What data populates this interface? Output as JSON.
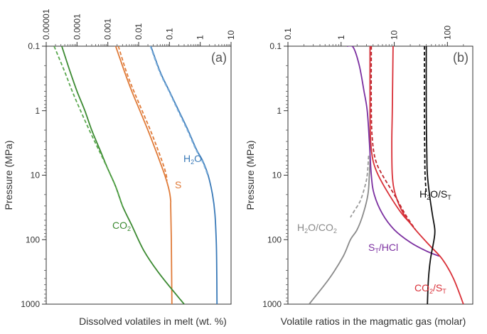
{
  "chart_data": [
    {
      "type": "line",
      "panel_label": "(a)",
      "xlabel": "Dissolved volatiles in melt (wt. %)",
      "ylabel": "Pressure (MPa)",
      "x_scale": "log",
      "y_scale": "log",
      "y_inverted": true,
      "x_axis_position": "top",
      "xlim": [
        1e-05,
        10
      ],
      "ylim": [
        0.1,
        1000
      ],
      "x_ticks": [
        1e-05,
        0.0001,
        0.001,
        0.01,
        0.1,
        1,
        10
      ],
      "x_tick_labels": [
        "0.00001",
        "0.0001",
        "0.001",
        "0.01",
        "0.1",
        "1",
        "10"
      ],
      "y_ticks": [
        0.1,
        1,
        10,
        100,
        1000
      ],
      "y_tick_labels": [
        "0.1",
        "1",
        "10",
        "100",
        "1000"
      ],
      "series": [
        {
          "name": "H2O",
          "label": "H",
          "label_sub": "2",
          "label_suffix": "O",
          "color": "#3a7ab8",
          "dash": "solid",
          "points": [
            [
              0.025,
              0.1
            ],
            [
              0.05,
              0.25
            ],
            [
              0.1,
              0.5
            ],
            [
              0.2,
              1
            ],
            [
              0.4,
              2
            ],
            [
              0.75,
              4
            ],
            [
              1.2,
              6
            ],
            [
              1.8,
              10
            ],
            [
              2.5,
              20
            ],
            [
              3,
              40
            ],
            [
              3.3,
              100
            ],
            [
              3.4,
              200
            ],
            [
              3.5,
              1000
            ]
          ]
        },
        {
          "name": "H2O (dashed)",
          "color": "#7fb0dc",
          "dash": "dashed",
          "points": [
            [
              0.024,
              0.1
            ],
            [
              0.048,
              0.25
            ],
            [
              0.096,
              0.5
            ],
            [
              0.19,
              1
            ],
            [
              0.38,
              2
            ],
            [
              0.72,
              4
            ],
            [
              1.15,
              6
            ],
            [
              1.75,
              10
            ]
          ]
        },
        {
          "name": "S",
          "label": "S",
          "color": "#e07b39",
          "dash": "solid",
          "points": [
            [
              0.0018,
              0.1
            ],
            [
              0.0035,
              0.25
            ],
            [
              0.006,
              0.5
            ],
            [
              0.011,
              1
            ],
            [
              0.02,
              2
            ],
            [
              0.035,
              4
            ],
            [
              0.06,
              8
            ],
            [
              0.08,
              12
            ],
            [
              0.1,
              18
            ],
            [
              0.11,
              25
            ],
            [
              0.11,
              30
            ],
            [
              0.115,
              100
            ],
            [
              0.12,
              1000
            ]
          ]
        },
        {
          "name": "S (dashed)",
          "color": "#e07b39",
          "dash": "dashed",
          "points": [
            [
              0.0022,
              0.1
            ],
            [
              0.004,
              0.25
            ],
            [
              0.007,
              0.5
            ],
            [
              0.013,
              1
            ],
            [
              0.024,
              2
            ],
            [
              0.042,
              4
            ],
            [
              0.07,
              8
            ],
            [
              0.085,
              12
            ]
          ]
        },
        {
          "name": "CO2",
          "label": "CO",
          "label_sub": "2",
          "color": "#3c8a32",
          "dash": "solid",
          "points": [
            [
              3.2e-05,
              0.1
            ],
            [
              6e-05,
              0.25
            ],
            [
              0.0001,
              0.5
            ],
            [
              0.00018,
              1
            ],
            [
              0.0003,
              2
            ],
            [
              0.00055,
              4
            ],
            [
              0.001,
              8
            ],
            [
              0.0018,
              15
            ],
            [
              0.003,
              30
            ],
            [
              0.006,
              60
            ],
            [
              0.015,
              150
            ],
            [
              0.05,
              350
            ],
            [
              0.3,
              1000
            ]
          ]
        },
        {
          "name": "CO2 (dashed)",
          "color": "#5aa84e",
          "dash": "dashed",
          "points": [
            [
              1.8e-05,
              0.1
            ],
            [
              4e-05,
              0.25
            ],
            [
              7e-05,
              0.5
            ],
            [
              0.00013,
              1
            ],
            [
              0.00025,
              2
            ],
            [
              0.0005,
              4
            ],
            [
              0.001,
              8
            ],
            [
              0.0018,
              15
            ],
            [
              0.003,
              30
            ]
          ]
        }
      ]
    },
    {
      "type": "line",
      "panel_label": "(b)",
      "xlabel": "Volatile ratios in the magmatic gas (molar)",
      "ylabel": "Pressure (MPa)",
      "x_scale": "log",
      "y_scale": "log",
      "y_inverted": true,
      "x_axis_position": "top",
      "xlim": [
        0.1,
        300
      ],
      "ylim": [
        0.1,
        1000
      ],
      "x_ticks": [
        0.1,
        1,
        10,
        100
      ],
      "x_tick_labels": [
        "0.1",
        "1",
        "10",
        "100"
      ],
      "y_ticks": [
        0.1,
        1,
        10,
        100,
        1000
      ],
      "y_tick_labels": [
        "0.1",
        "1",
        "10",
        "100",
        "1000"
      ],
      "series": [
        {
          "name": "H2O/CO2",
          "label": "H",
          "label_sub": "2",
          "label_suffix": "O/CO",
          "label_sub2": "2",
          "color": "#8a8a8a",
          "dash": "solid",
          "points": [
            [
              3.5,
              0.1
            ],
            [
              3.5,
              1
            ],
            [
              3.5,
              5
            ],
            [
              3.4,
              10
            ],
            [
              3.2,
              20
            ],
            [
              2.6,
              40
            ],
            [
              2,
              70
            ],
            [
              1.5,
              100
            ],
            [
              1.1,
              180
            ],
            [
              0.6,
              400
            ],
            [
              0.25,
              1000
            ]
          ]
        },
        {
          "name": "H2O/CO2 (dashed)",
          "color": "#9a9a9a",
          "dash": "dashed",
          "points": [
            [
              3.3,
              5
            ],
            [
              3.1,
              10
            ],
            [
              2.8,
              15
            ],
            [
              2.3,
              25
            ],
            [
              1.8,
              35
            ],
            [
              1.5,
              45
            ]
          ]
        },
        {
          "name": "ST/HCl",
          "label": "S",
          "label_sub": "T",
          "label_suffix": "/HCl",
          "color": "#7b2fa0",
          "dash": "solid",
          "points": [
            [
              1.3,
              0.1
            ],
            [
              1.7,
              0.105
            ],
            [
              2.2,
              0.2
            ],
            [
              2.7,
              0.5
            ],
            [
              3.1,
              1
            ],
            [
              3.4,
              3
            ],
            [
              3.7,
              10
            ],
            [
              4.2,
              20
            ],
            [
              6,
              40
            ],
            [
              10,
              70
            ],
            [
              20,
              110
            ],
            [
              40,
              150
            ],
            [
              70,
              180
            ]
          ]
        },
        {
          "name": "CO2/ST",
          "label": "CO",
          "label_sub": "2",
          "label_suffix": "/S",
          "label_sub2": "T",
          "color": "#d93038",
          "dash": "solid",
          "points": [
            [
              9.5,
              0.1
            ],
            [
              9.2,
              1
            ],
            [
              9,
              3
            ],
            [
              9.2,
              10
            ],
            [
              10.5,
              20
            ],
            [
              15,
              40
            ],
            [
              25,
              70
            ],
            [
              45,
              120
            ],
            [
              80,
              200
            ],
            [
              130,
              400
            ],
            [
              200,
              1000
            ]
          ]
        },
        {
          "name": "CO2/ST (dashed)",
          "color": "#c0262e",
          "dash": "dashed",
          "points": [
            [
              3.7,
              0.1
            ],
            [
              3.7,
              1
            ],
            [
              3.9,
              3
            ],
            [
              4.5,
              6
            ],
            [
              6,
              10
            ],
            [
              10,
              20
            ],
            [
              16,
              40
            ],
            [
              25,
              70
            ]
          ]
        },
        {
          "name": "CO2/ST (red solid 2)",
          "color": "#d93038",
          "dash": "solid",
          "points": [
            [
              3.5,
              0.1
            ],
            [
              3.5,
              1
            ],
            [
              3.6,
              3
            ],
            [
              4,
              6
            ],
            [
              5,
              10
            ],
            [
              8,
              20
            ],
            [
              14,
              40
            ],
            [
              22,
              60
            ]
          ]
        },
        {
          "name": "H2O/ST",
          "label": "H",
          "label_sub": "2",
          "label_suffix": "O/S",
          "label_sub2": "T",
          "color": "#111111",
          "dash": "solid",
          "points": [
            [
              40,
              0.1
            ],
            [
              40,
              1
            ],
            [
              41,
              5
            ],
            [
              42,
              10
            ],
            [
              46,
              20
            ],
            [
              52,
              40
            ],
            [
              58,
              70
            ],
            [
              56,
              100
            ],
            [
              48,
              200
            ],
            [
              44,
              400
            ],
            [
              42,
              1000
            ]
          ]
        },
        {
          "name": "H2O/ST (dashed)",
          "color": "#111111",
          "dash": "dashed",
          "points": [
            [
              37,
              0.1
            ],
            [
              37,
              1
            ],
            [
              37.5,
              5
            ],
            [
              38,
              10
            ],
            [
              40,
              20
            ]
          ]
        }
      ]
    }
  ]
}
